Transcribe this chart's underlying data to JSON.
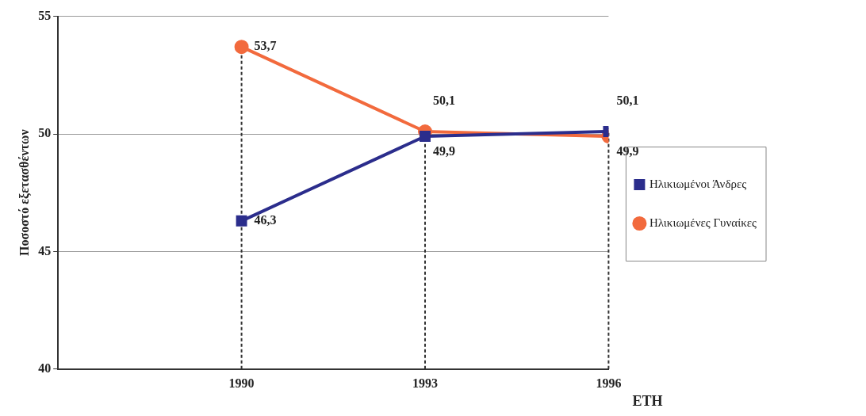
{
  "chart_data": {
    "type": "line",
    "xlabel": "ΕΤΗ",
    "ylabel": "Ποσοστό εξετασθέντων",
    "x": [
      1990,
      1993,
      1996
    ],
    "xlim": [
      1987,
      1996
    ],
    "xticks": [
      1990,
      1993,
      1996
    ],
    "ylim": [
      40,
      55
    ],
    "yticks": [
      40,
      45,
      50,
      55
    ],
    "grid": "y",
    "legend": "right",
    "series": [
      {
        "name": "Ηλικιωμένοι Άνδρες",
        "color": "#2b2d8c",
        "marker": "square",
        "values": [
          46.3,
          49.9,
          50.1
        ],
        "value_labels": [
          "46,3",
          "49,9",
          "50,1"
        ]
      },
      {
        "name": "Ηλικιωμένες Γυναίκες",
        "color": "#f26a3d",
        "marker": "circle",
        "values": [
          53.7,
          50.1,
          49.9
        ],
        "value_labels": [
          "53,7",
          "50,1",
          "49,9"
        ]
      }
    ],
    "ref_lines": [
      {
        "axis": "x",
        "value": 1990,
        "line_style": "dashed",
        "color": "#333333"
      },
      {
        "axis": "x",
        "value": 1993,
        "line_style": "dashed",
        "color": "#333333"
      },
      {
        "axis": "x",
        "value": 1996,
        "line_style": "dashed",
        "color": "#333333"
      }
    ]
  }
}
